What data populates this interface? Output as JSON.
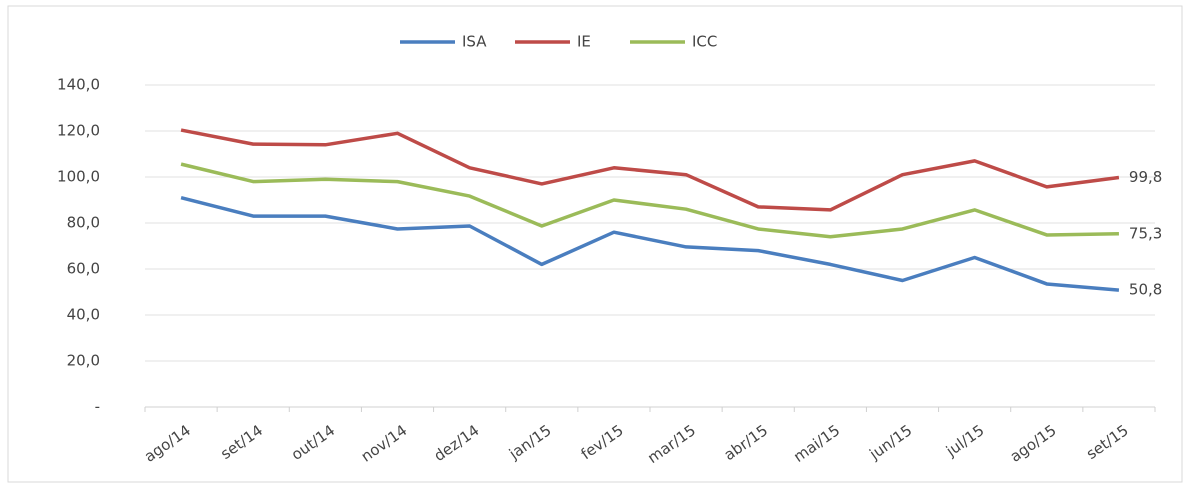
{
  "chart_data": {
    "type": "line",
    "categories": [
      "ago/14",
      "set/14",
      "out/14",
      "nov/14",
      "dez/14",
      "jan/15",
      "fev/15",
      "mar/15",
      "abr/15",
      "mai/15",
      "jun/15",
      "jul/15",
      "ago/15",
      "set/15"
    ],
    "series": [
      {
        "name": "ISA",
        "color": "#4a7ebf",
        "values": [
          91,
          83,
          83,
          77.4,
          78.7,
          62,
          76,
          69.6,
          68,
          62,
          55,
          65,
          53.5,
          50.8
        ],
        "value_labels": [
          null,
          null,
          null,
          null,
          null,
          null,
          null,
          null,
          null,
          null,
          null,
          null,
          null,
          "50,8"
        ]
      },
      {
        "name": "IE",
        "color": "#be4b48",
        "values": [
          120.4,
          114.3,
          114,
          119,
          104,
          97,
          104,
          101,
          87,
          85.7,
          101,
          107,
          95.7,
          99.8
        ],
        "value_labels": [
          null,
          null,
          null,
          null,
          null,
          null,
          null,
          null,
          null,
          null,
          null,
          null,
          null,
          "99,8"
        ]
      },
      {
        "name": "ICC",
        "color": "#9bbb59",
        "values": [
          105.6,
          98,
          99,
          98,
          91.7,
          78.7,
          90,
          86,
          77.4,
          74,
          77.4,
          85.7,
          74.8,
          75.3
        ],
        "value_labels": [
          null,
          null,
          null,
          null,
          null,
          null,
          null,
          null,
          null,
          null,
          null,
          null,
          null,
          "75,3"
        ]
      }
    ],
    "ylim": [
      0,
      140
    ],
    "yticks": [
      {
        "value": 0,
        "label": "-"
      },
      {
        "value": 20,
        "label": "20,0"
      },
      {
        "value": 40,
        "label": "40,0"
      },
      {
        "value": 60,
        "label": "60,0"
      },
      {
        "value": 80,
        "label": "80,0"
      },
      {
        "value": 100,
        "label": "100,0"
      },
      {
        "value": 120,
        "label": "120,0"
      },
      {
        "value": 140,
        "label": "140,0"
      }
    ],
    "grid": true,
    "legend": "top"
  }
}
